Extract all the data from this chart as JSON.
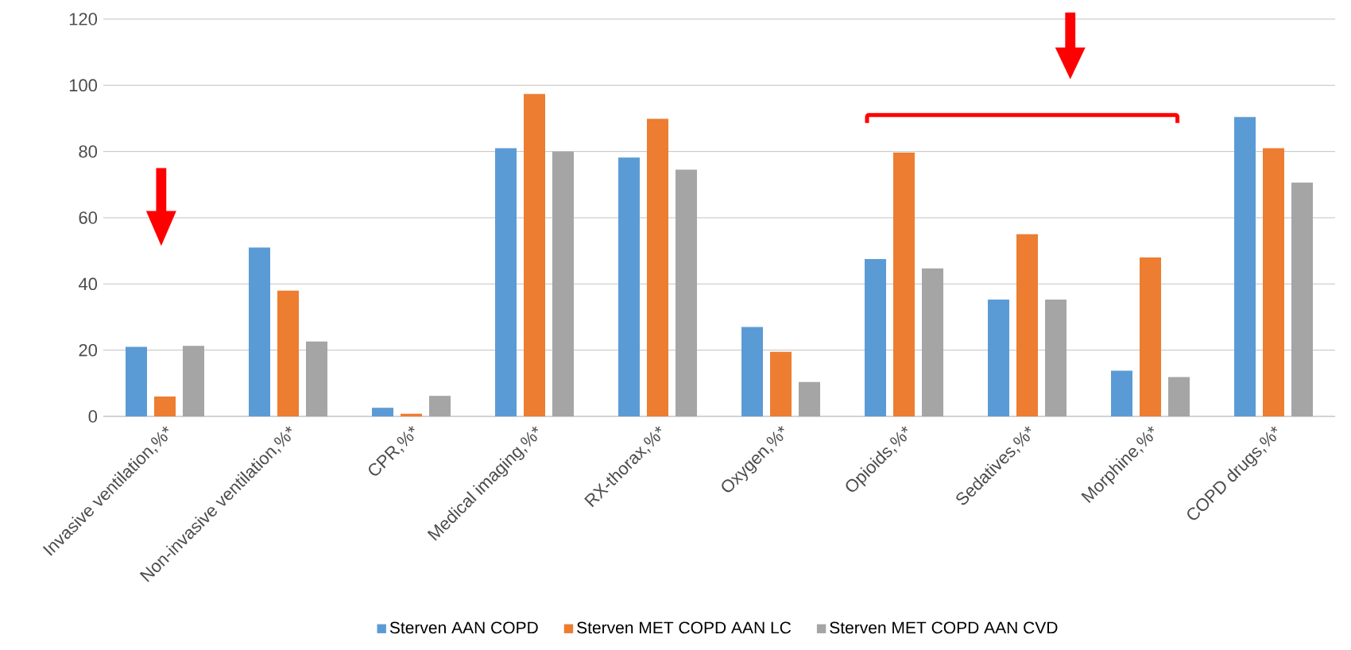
{
  "chart_data": {
    "type": "bar",
    "categories": [
      "Invasive ventilation,%*",
      "Non-invasive ventilation,%*",
      "CPR,%*",
      "Medical imaging,%*",
      "RX-thorax,%*",
      "Oxygen,%*",
      "Opioids,%*",
      "Sedatives,%*",
      "Morphine,%*",
      "COPD drugs,%*"
    ],
    "series": [
      {
        "name": "Sterven AAN COPD",
        "color": "#5b9bd5",
        "values": [
          21,
          51,
          2.6,
          81,
          78.2,
          27,
          47.5,
          35.3,
          13.8,
          90.4
        ]
      },
      {
        "name": "Sterven MET COPD AAN LC",
        "color": "#ed7d31",
        "values": [
          6,
          38,
          0.8,
          97.4,
          89.9,
          19.5,
          79.7,
          55,
          48,
          81
        ]
      },
      {
        "name": "Sterven MET COPD AAN CVD",
        "color": "#a5a5a5",
        "values": [
          21.3,
          22.6,
          6.2,
          80,
          74.5,
          10.4,
          44.7,
          35.3,
          11.9,
          70.6
        ]
      }
    ],
    "ylim": [
      0,
      120
    ],
    "yticks": [
      0,
      20,
      40,
      60,
      80,
      100,
      120
    ],
    "grid": "y",
    "legend": "bottom"
  }
}
